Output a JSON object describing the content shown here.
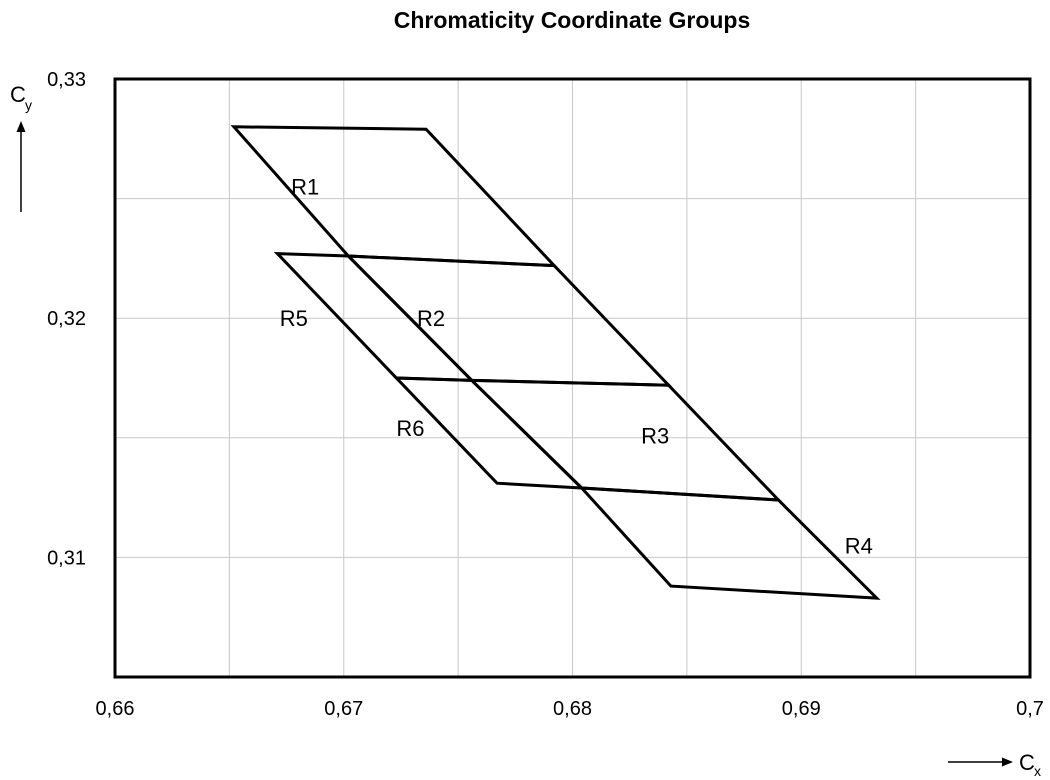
{
  "chart_data": {
    "type": "line",
    "title": "Chromaticity Coordinate Groups",
    "xlabel": {
      "main": "C",
      "sub": "x"
    },
    "ylabel": {
      "main": "C",
      "sub": "y"
    },
    "xlim": [
      0.66,
      0.7
    ],
    "ylim": [
      0.305,
      0.33
    ],
    "grid": true,
    "x_ticks": [
      0.66,
      0.665,
      0.67,
      0.675,
      0.68,
      0.685,
      0.69,
      0.695,
      0.7
    ],
    "x_tick_labels": [
      "0,66",
      "",
      "0,67",
      "",
      "0,68",
      "",
      "0,69",
      "",
      "0,7"
    ],
    "y_ticks": [
      0.305,
      0.31,
      0.315,
      0.32,
      0.325,
      0.33
    ],
    "y_tick_labels": [
      "",
      "0,31",
      "",
      "0,32",
      "",
      "0,33"
    ],
    "series": [
      {
        "label": "R1",
        "label_pos": [
          0.6719,
          0.3255
        ],
        "points": [
          [
            0.6652,
            0.328
          ],
          [
            0.6736,
            0.3279
          ],
          [
            0.6792,
            0.3222
          ],
          [
            0.6702,
            0.3226
          ]
        ]
      },
      {
        "label": "R2",
        "label_pos": [
          0.6774,
          0.32
        ],
        "points": [
          [
            0.6702,
            0.3226
          ],
          [
            0.6792,
            0.3222
          ],
          [
            0.6842,
            0.3172
          ],
          [
            0.6756,
            0.3174
          ]
        ]
      },
      {
        "label": "R3",
        "label_pos": [
          0.6872,
          0.3151
        ],
        "points": [
          [
            0.6756,
            0.3174
          ],
          [
            0.6842,
            0.3172
          ],
          [
            0.689,
            0.3124
          ],
          [
            0.6804,
            0.3129
          ]
        ]
      },
      {
        "label": "R4",
        "label_pos": [
          0.6961,
          0.3105
        ],
        "points": [
          [
            0.6804,
            0.3129
          ],
          [
            0.689,
            0.3124
          ],
          [
            0.6933,
            0.3083
          ],
          [
            0.6843,
            0.3088
          ]
        ]
      },
      {
        "label": "R5",
        "label_pos": [
          0.6714,
          0.32
        ],
        "points": [
          [
            0.6671,
            0.3227
          ],
          [
            0.6702,
            0.3226
          ],
          [
            0.6756,
            0.3174
          ],
          [
            0.6723,
            0.3175
          ]
        ]
      },
      {
        "label": "R6",
        "label_pos": [
          0.6765,
          0.3154
        ],
        "points": [
          [
            0.6723,
            0.3175
          ],
          [
            0.6756,
            0.3174
          ],
          [
            0.6804,
            0.3129
          ],
          [
            0.6767,
            0.3131
          ]
        ]
      }
    ]
  }
}
